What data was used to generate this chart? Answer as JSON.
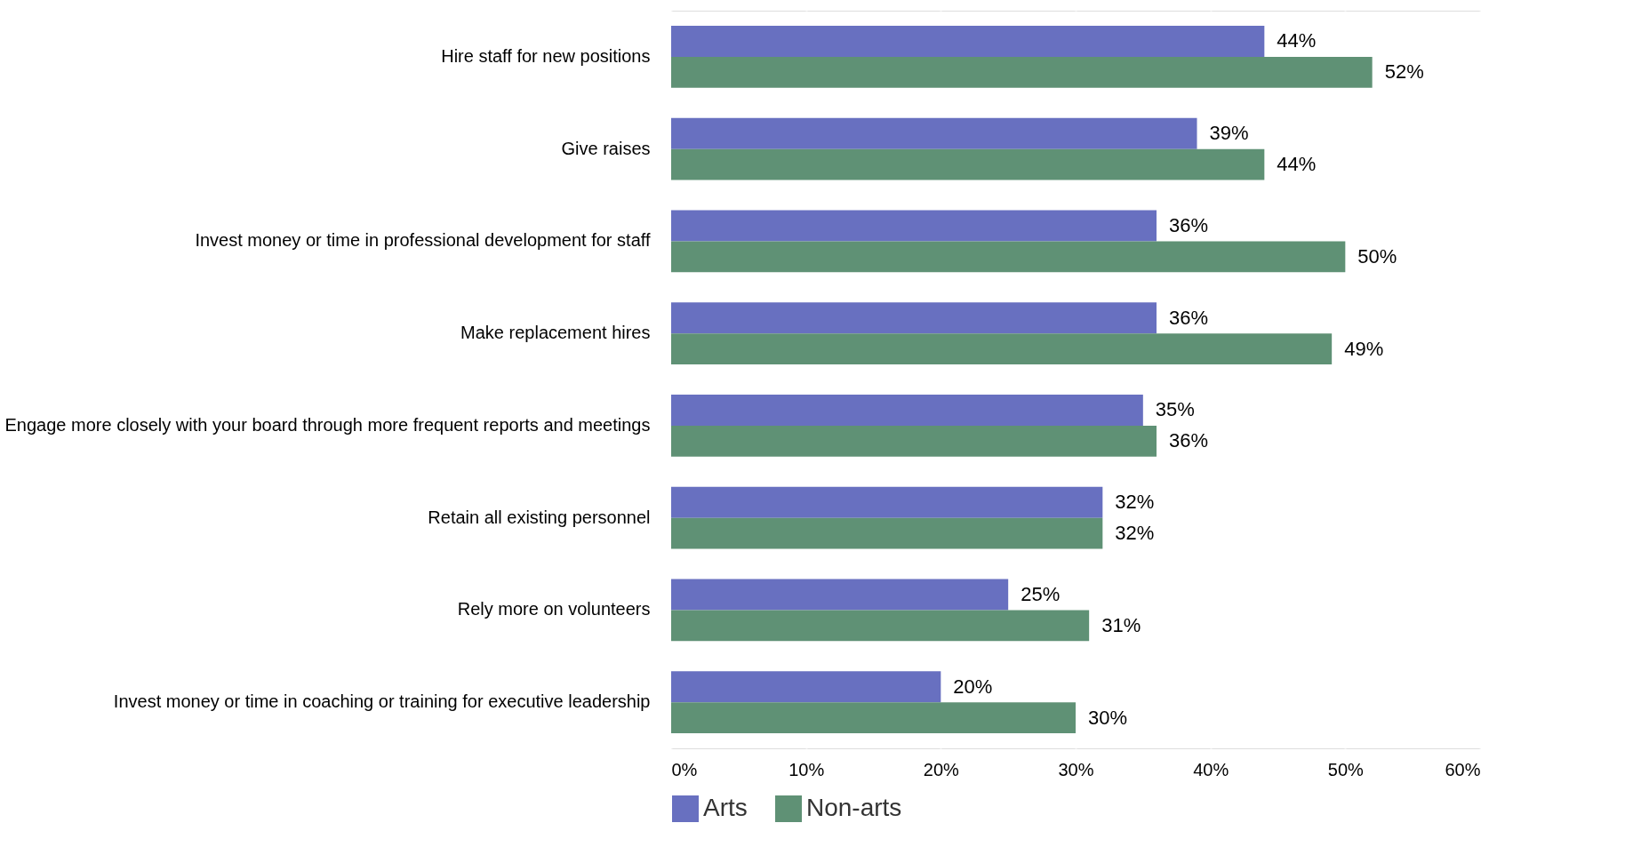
{
  "chart_data": {
    "type": "bar",
    "orientation": "horizontal",
    "categories": [
      "Hire staff for new positions",
      "Give raises",
      "Invest money or time in professional development for staff",
      "Make replacement hires",
      "Engage more closely with your board through more frequent reports and meetings",
      "Retain all existing personnel",
      "Rely more on volunteers",
      "Invest money or time in coaching or training for executive leadership"
    ],
    "series": [
      {
        "name": "Arts",
        "color": "#6870c0",
        "values": [
          44,
          39,
          36,
          36,
          35,
          32,
          25,
          20
        ],
        "value_labels": [
          "44%",
          "39%",
          "36%",
          "36%",
          "35%",
          "32%",
          "25%",
          "20%"
        ]
      },
      {
        "name": "Non-arts",
        "color": "#5f9175",
        "values": [
          52,
          44,
          50,
          49,
          36,
          32,
          31,
          30
        ],
        "value_labels": [
          "52%",
          "44%",
          "50%",
          "49%",
          "36%",
          "32%",
          "31%",
          "30%"
        ]
      }
    ],
    "xlim": [
      0,
      60
    ],
    "xticks": [
      {
        "value": 0,
        "label": "0%"
      },
      {
        "value": 10,
        "label": "10%"
      },
      {
        "value": 20,
        "label": "20%"
      },
      {
        "value": 30,
        "label": "30%"
      },
      {
        "value": 40,
        "label": "40%"
      },
      {
        "value": 50,
        "label": "50%"
      },
      {
        "value": 60,
        "label": "60%"
      }
    ],
    "grid": "x",
    "legend": "bottom"
  }
}
